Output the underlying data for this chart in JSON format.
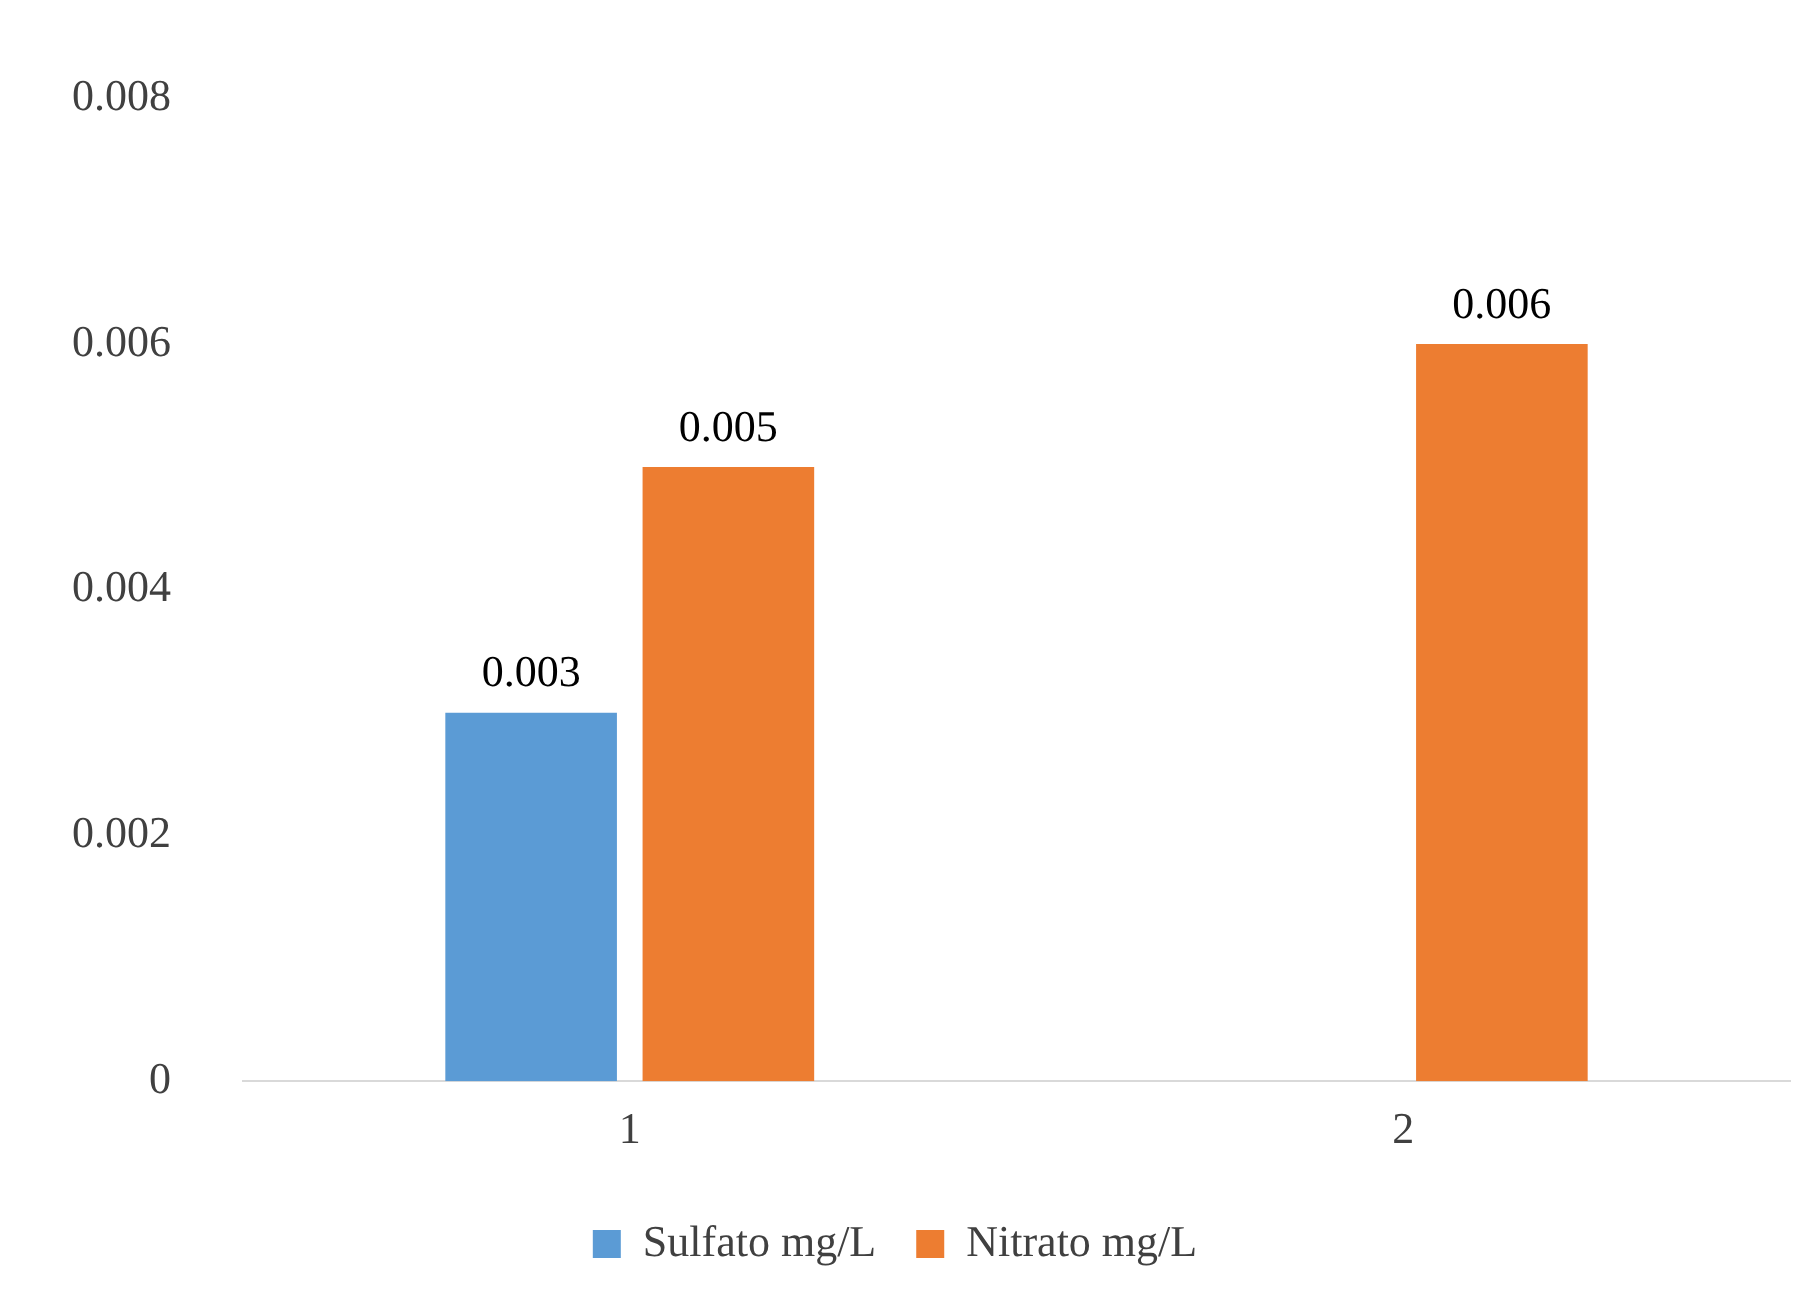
{
  "chart_data": {
    "type": "bar",
    "categories": [
      "1",
      "2"
    ],
    "series": [
      {
        "name": "Sulfato mg/L",
        "color": "#5b9bd5",
        "values": [
          0.003,
          null
        ]
      },
      {
        "name": "Nitrato mg/L",
        "color": "#ed7d31",
        "values": [
          0.005,
          0.006
        ]
      }
    ],
    "ylim": [
      0,
      0.008
    ],
    "yticks": [
      0,
      0.002,
      0.004,
      0.006,
      0.008
    ],
    "grid": false,
    "legend": "bottom",
    "data_labels": true
  }
}
